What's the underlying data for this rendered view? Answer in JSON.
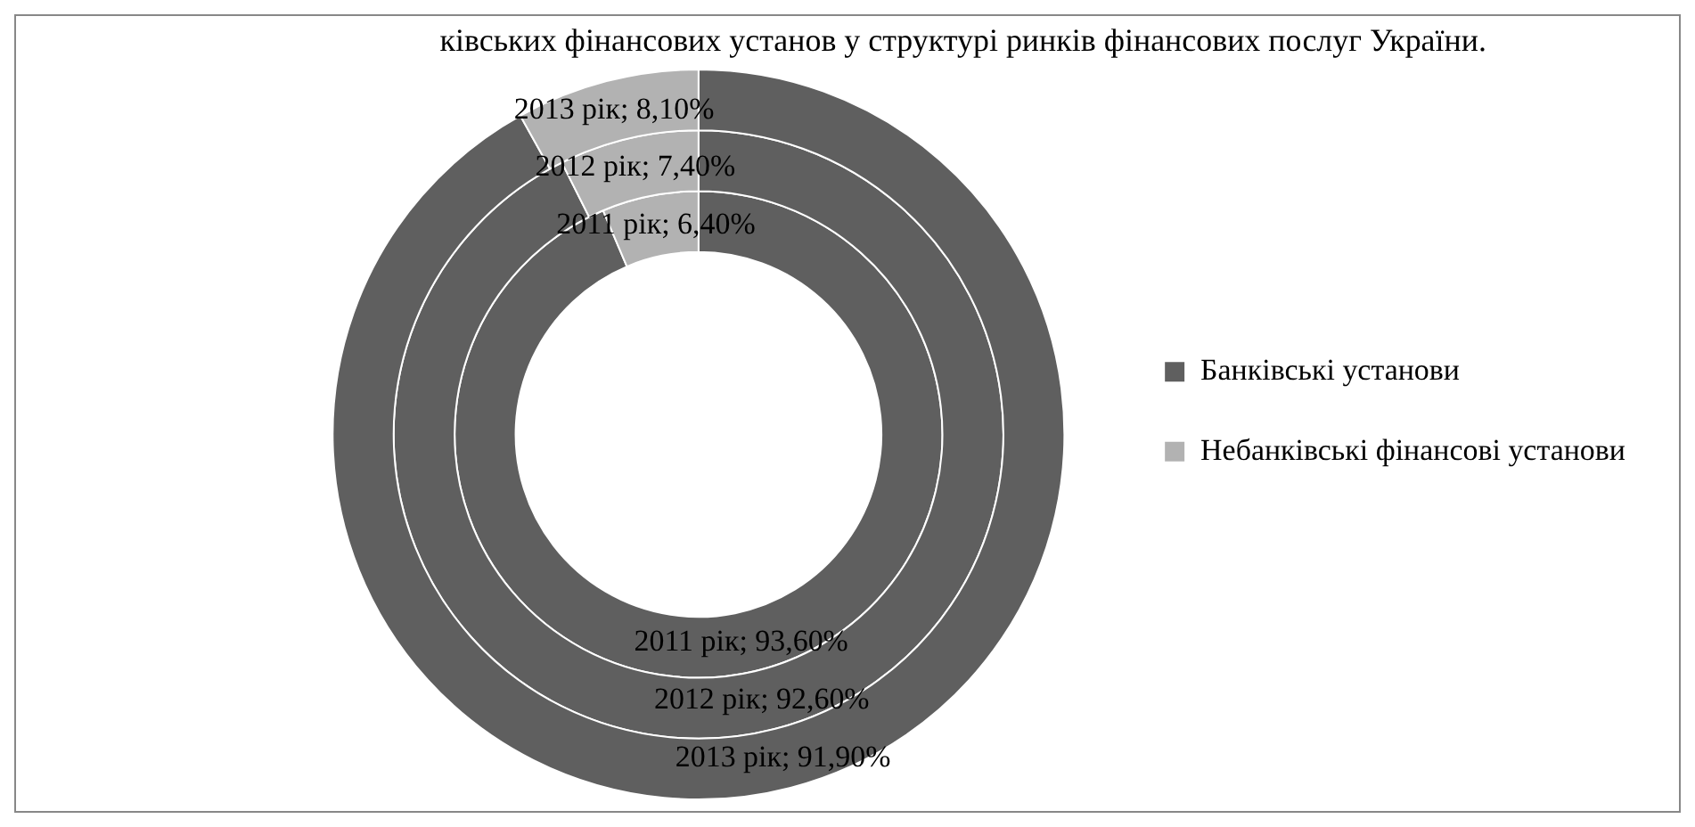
{
  "chart_data": {
    "type": "donut",
    "title": "ківських фінансових установ у структурі ринків фінансових послуг України.",
    "categories": [
      "Банківські установи",
      "Небанківські фінансові установи"
    ],
    "colors": [
      "#5f5f5f",
      "#b2b2b2"
    ],
    "series": [
      {
        "values": [
          93.6,
          6.4
        ],
        "value_labels": [
          "2011 рік; 93,60%",
          "2011 рік; 6,40%"
        ]
      },
      {
        "values": [
          92.6,
          7.4
        ],
        "value_labels": [
          "2012 рік; 92,60%",
          "2012 рік; 7,40%"
        ]
      },
      {
        "values": [
          91.9,
          8.1
        ],
        "value_labels": [
          "2013 рік; 91,90%",
          "2013 рік; 8,10%"
        ]
      }
    ],
    "legend": "right"
  }
}
